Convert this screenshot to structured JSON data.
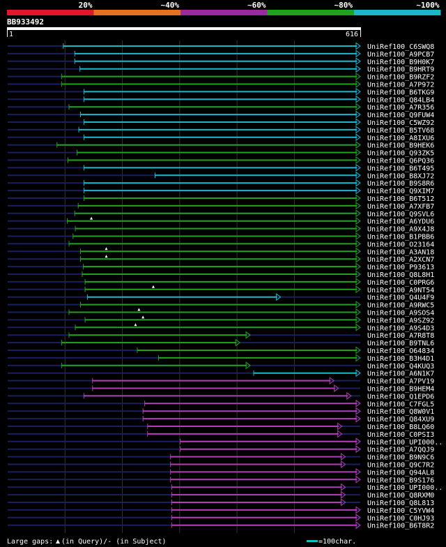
{
  "legend": {
    "bands": [
      {
        "label": "20%",
        "color": "#e0162b"
      },
      {
        "label": "~40%",
        "color": "#e8701d"
      },
      {
        "label": "~60%",
        "color": "#9b2a9b"
      },
      {
        "label": "~80%",
        "color": "#1fa31a"
      },
      {
        "label": "~100%",
        "color": "#19b8c6"
      }
    ]
  },
  "query": {
    "id": "BB933492",
    "start_label": "1",
    "end_label": "616",
    "length": 616
  },
  "colors": {
    "cyan": "#19b8c6",
    "green": "#1fa31a",
    "purple": "#b43cb4",
    "dim": "#1b1f5e",
    "grid": "#333333"
  },
  "footer": {
    "gaps_text": "Large gaps: ",
    "gaps_q": "(in Query)/",
    "gaps_dash": "- (in Subject)",
    "scale_label": "=100char."
  },
  "chart_data": {
    "type": "alignment",
    "rows": [
      {
        "id": "UniRef100_C6SWQ8",
        "start": 98,
        "end": 616,
        "color": "cyan"
      },
      {
        "id": "UniRef100_A9PCB7",
        "start": 118,
        "end": 616,
        "color": "cyan"
      },
      {
        "id": "UniRef100_B9H0K7",
        "start": 118,
        "end": 616,
        "color": "cyan"
      },
      {
        "id": "UniRef100_B9HRT9",
        "start": 127,
        "end": 616,
        "color": "cyan"
      },
      {
        "id": "UniRef100_B9RZF2",
        "start": 95,
        "end": 616,
        "color": "green"
      },
      {
        "id": "UniRef100_A7P972",
        "start": 95,
        "end": 616,
        "color": "green"
      },
      {
        "id": "UniRef100_B6TKG9",
        "start": 134,
        "end": 616,
        "color": "cyan"
      },
      {
        "id": "UniRef100_Q84LB4",
        "start": 134,
        "end": 616,
        "color": "cyan"
      },
      {
        "id": "UniRef100_A7R356",
        "start": 108,
        "end": 616,
        "color": "green"
      },
      {
        "id": "UniRef100_Q9FUW4",
        "start": 128,
        "end": 616,
        "color": "cyan"
      },
      {
        "id": "UniRef100_C5WZ92",
        "start": 134,
        "end": 616,
        "color": "cyan"
      },
      {
        "id": "UniRef100_B5TV68",
        "start": 125,
        "end": 616,
        "color": "cyan"
      },
      {
        "id": "UniRef100_A8IXU6",
        "start": 134,
        "end": 616,
        "color": "cyan"
      },
      {
        "id": "UniRef100_B9HEK6",
        "start": 87,
        "end": 616,
        "color": "green"
      },
      {
        "id": "UniRef100_Q93ZK5",
        "start": 122,
        "end": 616,
        "color": "green"
      },
      {
        "id": "UniRef100_Q6PQ36",
        "start": 106,
        "end": 616,
        "color": "green"
      },
      {
        "id": "UniRef100_B6T495",
        "start": 134,
        "end": 616,
        "color": "cyan"
      },
      {
        "id": "UniRef100_B8XJ72",
        "start": 258,
        "end": 616,
        "color": "cyan"
      },
      {
        "id": "UniRef100_B9S8R6",
        "start": 134,
        "end": 616,
        "color": "cyan"
      },
      {
        "id": "UniRef100_Q9XIM7",
        "start": 134,
        "end": 616,
        "color": "cyan"
      },
      {
        "id": "UniRef100_B6T512",
        "start": 134,
        "end": 616,
        "color": "green"
      },
      {
        "id": "UniRef100_A7XFB7",
        "start": 124,
        "end": 616,
        "color": "green"
      },
      {
        "id": "UniRef100_Q9SVL6",
        "start": 118,
        "end": 616,
        "color": "green"
      },
      {
        "id": "UniRef100_A6YDU6",
        "start": 105,
        "end": 616,
        "color": "green",
        "gap": 147
      },
      {
        "id": "UniRef100_A9X4J8",
        "start": 119,
        "end": 616,
        "color": "green"
      },
      {
        "id": "UniRef100_B1PBB6",
        "start": 115,
        "end": 616,
        "color": "green"
      },
      {
        "id": "UniRef100_O23164",
        "start": 108,
        "end": 616,
        "color": "green"
      },
      {
        "id": "UniRef100_A3AN18",
        "start": 128,
        "end": 616,
        "color": "green",
        "gap": 173
      },
      {
        "id": "UniRef100_A2XCN7",
        "start": 128,
        "end": 616,
        "color": "green",
        "gap": 173
      },
      {
        "id": "UniRef100_P93613",
        "start": 133,
        "end": 616,
        "color": "green"
      },
      {
        "id": "UniRef100_Q8L8H1",
        "start": 131,
        "end": 616,
        "color": "green"
      },
      {
        "id": "UniRef100_C0PRG6",
        "start": 136,
        "end": 616,
        "color": "green"
      },
      {
        "id": "UniRef100_A9NT54",
        "start": 136,
        "end": 616,
        "color": "green",
        "gap": 255
      },
      {
        "id": "UniRef100_Q4U4F9",
        "start": 140,
        "end": 477,
        "color": "cyan"
      },
      {
        "id": "UniRef100_A9RWC5",
        "start": 128,
        "end": 616,
        "color": "green"
      },
      {
        "id": "UniRef100_A9SOS4",
        "start": 108,
        "end": 616,
        "color": "green",
        "gap": 230
      },
      {
        "id": "UniRef100_A9SZ92",
        "start": 136,
        "end": 616,
        "color": "green",
        "gap": 237
      },
      {
        "id": "UniRef100_A9S4D3",
        "start": 119,
        "end": 616,
        "color": "green",
        "gap": 224
      },
      {
        "id": "UniRef100_A7R8T8",
        "start": 108,
        "end": 424,
        "color": "green"
      },
      {
        "id": "UniRef100_B9TNL6",
        "start": 95,
        "end": 406,
        "color": "green"
      },
      {
        "id": "UniRef100_O64834",
        "start": 227,
        "end": 616,
        "color": "green"
      },
      {
        "id": "UniRef100_B3H4D1",
        "start": 264,
        "end": 616,
        "color": "green"
      },
      {
        "id": "UniRef100_Q4KUQ3",
        "start": 95,
        "end": 424,
        "color": "green"
      },
      {
        "id": "UniRef100_A6N1K7",
        "start": 430,
        "end": 616,
        "color": "cyan"
      },
      {
        "id": "UniRef100_A7PV19",
        "start": 149,
        "end": 570,
        "color": "purple"
      },
      {
        "id": "UniRef100_B9HEM4",
        "start": 149,
        "end": 578,
        "color": "purple"
      },
      {
        "id": "UniRef100_Q1EPD6",
        "start": 134,
        "end": 600,
        "color": "purple"
      },
      {
        "id": "UniRef100_C7FGL5",
        "start": 240,
        "end": 616,
        "color": "purple"
      },
      {
        "id": "UniRef100_Q8W0V1",
        "start": 237,
        "end": 616,
        "color": "purple"
      },
      {
        "id": "UniRef100_Q84XU9",
        "start": 237,
        "end": 616,
        "color": "purple"
      },
      {
        "id": "UniRef100_B8LQ60",
        "start": 245,
        "end": 584,
        "color": "purple"
      },
      {
        "id": "UniRef100_C0PSI3",
        "start": 245,
        "end": 584,
        "color": "purple"
      },
      {
        "id": "UniRef100_UPI000..",
        "start": 302,
        "end": 616,
        "color": "purple"
      },
      {
        "id": "UniRef100_A7QQJ9",
        "start": 302,
        "end": 616,
        "color": "purple"
      },
      {
        "id": "UniRef100_B9N9C6",
        "start": 285,
        "end": 590,
        "color": "purple"
      },
      {
        "id": "UniRef100_Q9C7R2",
        "start": 285,
        "end": 590,
        "color": "purple"
      },
      {
        "id": "UniRef100_Q94AL8",
        "start": 285,
        "end": 616,
        "color": "purple"
      },
      {
        "id": "UniRef100_B9S176",
        "start": 285,
        "end": 616,
        "color": "purple"
      },
      {
        "id": "UniRef100_UPI000..",
        "start": 287,
        "end": 590,
        "color": "purple"
      },
      {
        "id": "UniRef100_Q8RXM0",
        "start": 287,
        "end": 590,
        "color": "purple"
      },
      {
        "id": "UniRef100_Q8L813",
        "start": 287,
        "end": 590,
        "color": "purple"
      },
      {
        "id": "UniRef100_C5YVW4",
        "start": 287,
        "end": 616,
        "color": "purple"
      },
      {
        "id": "UniRef100_C0HJ93",
        "start": 287,
        "end": 616,
        "color": "purple"
      },
      {
        "id": "UniRef100_B6T8R2",
        "start": 287,
        "end": 616,
        "color": "purple"
      }
    ]
  }
}
